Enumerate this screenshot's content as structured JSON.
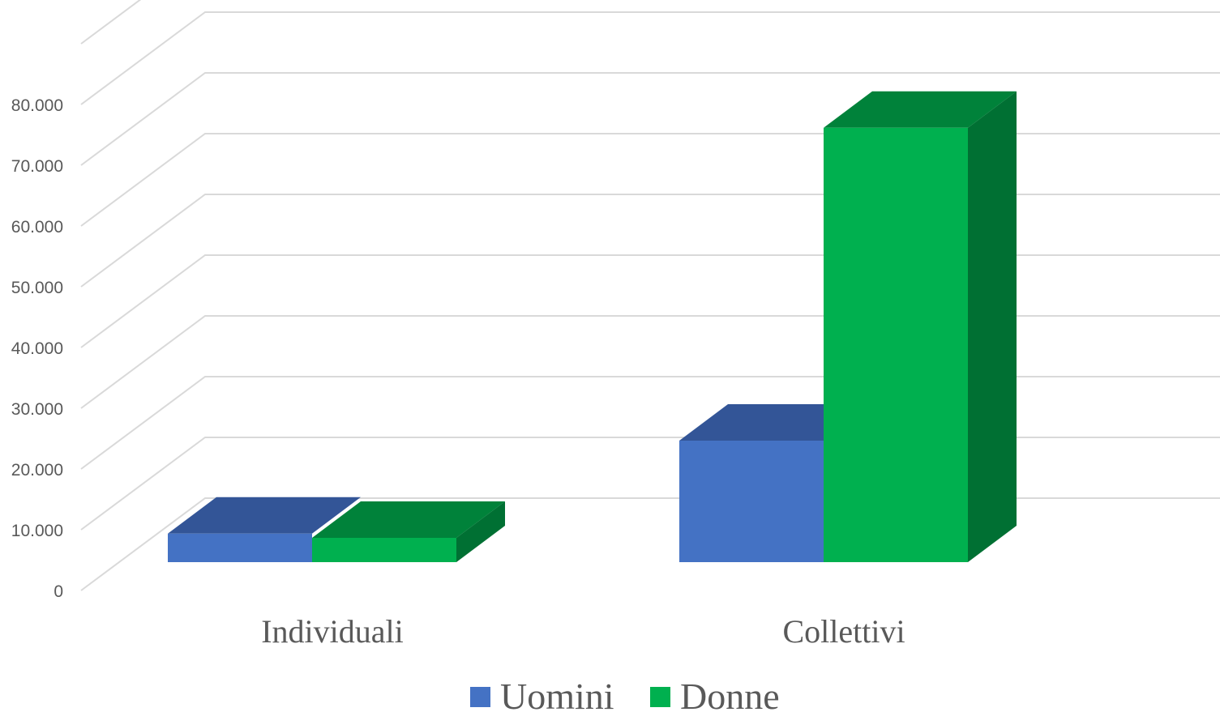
{
  "chart_data": {
    "type": "bar",
    "style": "3d-clustered-column",
    "categories": [
      "Individuali",
      "Collettivi"
    ],
    "series": [
      {
        "name": "Uomini",
        "values": [
          4700,
          20000
        ],
        "color": "#4472C4",
        "top_color": "#335597",
        "side_color": "#335597"
      },
      {
        "name": "Donne",
        "values": [
          4000,
          71500
        ],
        "color": "#00B04F",
        "top_color": "#00823A",
        "side_color": "#007033"
      }
    ],
    "ylim": [
      0,
      90000
    ],
    "yticks": [
      "0",
      "10.000",
      "20.000",
      "30.000",
      "40.000",
      "50.000",
      "60.000",
      "70.000",
      "80.000"
    ],
    "grid": true,
    "legend_position": "bottom",
    "grid_color": "#D9D9D9",
    "text_color": "#595959"
  }
}
